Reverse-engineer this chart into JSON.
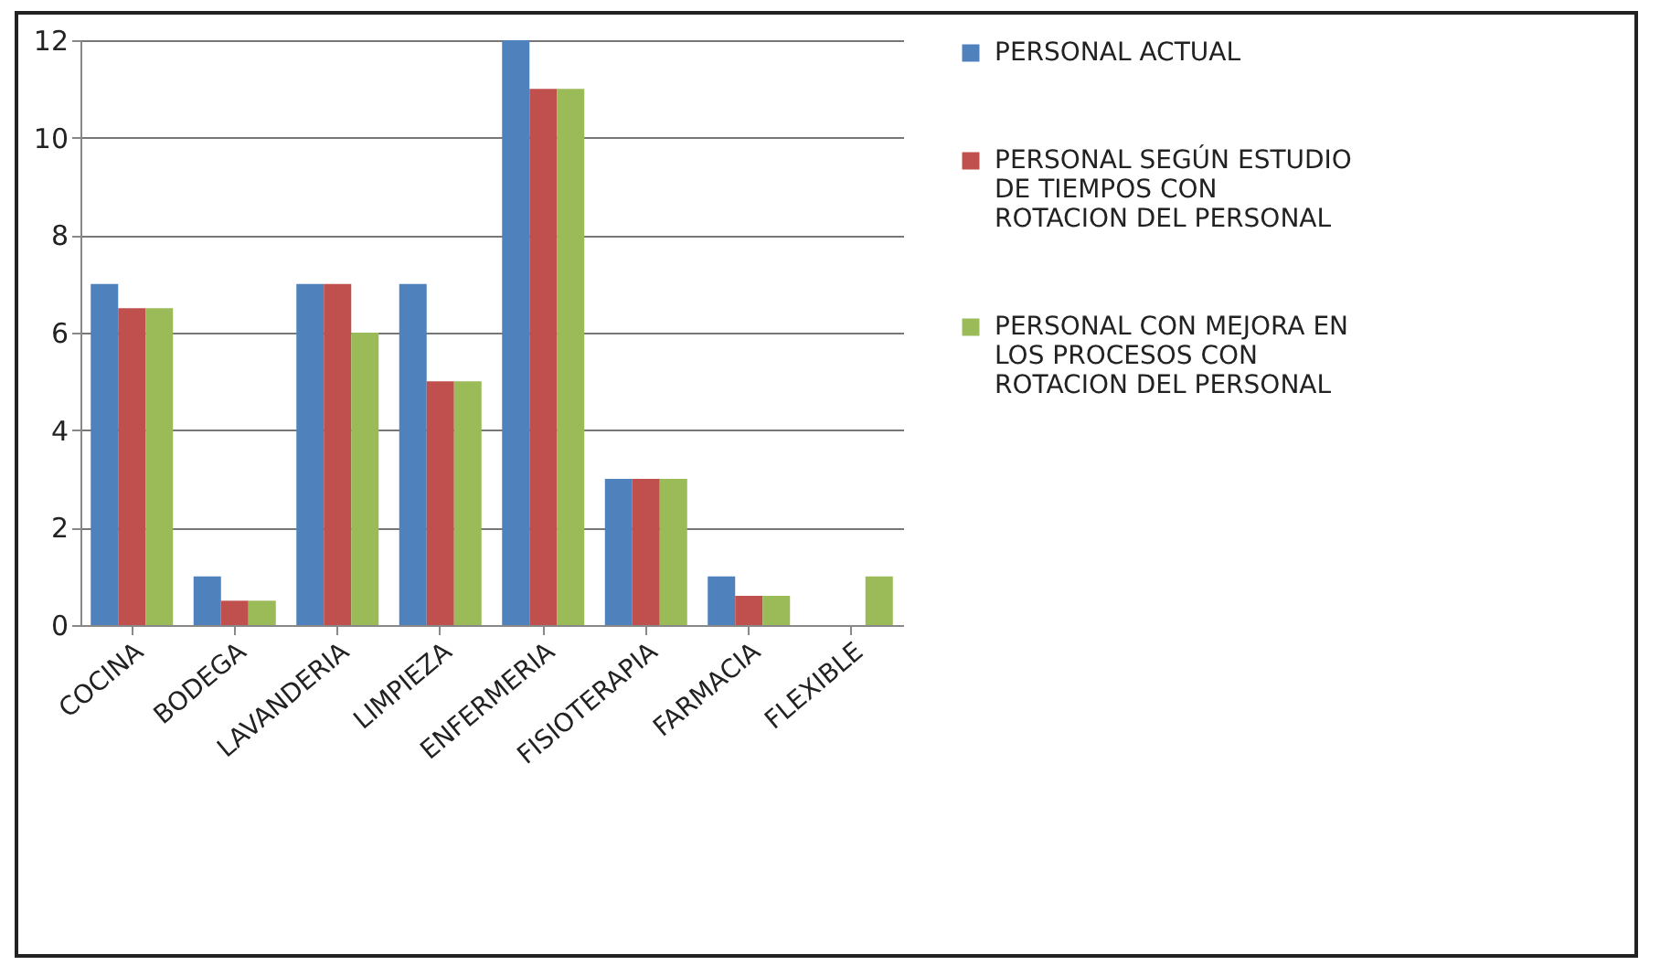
{
  "chart_data": {
    "type": "bar",
    "categories": [
      "COCINA",
      "BODEGA",
      "LAVANDERIA",
      "LIMPIEZA",
      "ENFERMERIA",
      "FISIOTERAPIA",
      "FARMACIA",
      "FLEXIBLE"
    ],
    "series": [
      {
        "name": "PERSONAL ACTUAL",
        "color": "#4f81bd",
        "values": [
          7,
          1,
          7,
          7,
          12,
          3,
          1,
          0
        ]
      },
      {
        "name": "PERSONAL SEGÚN ESTUDIO DE TIEMPOS CON  ROTACION DEL PERSONAL",
        "color": "#c0504d",
        "values": [
          6.5,
          0.5,
          7,
          5,
          11,
          3,
          0.6,
          0
        ]
      },
      {
        "name": "PERSONAL CON MEJORA EN LOS PROCESOS CON ROTACION DEL PERSONAL",
        "color": "#9bbb59",
        "values": [
          6.5,
          0.5,
          6,
          5,
          11,
          3,
          0.6,
          1
        ]
      }
    ],
    "ylim": [
      0,
      12
    ],
    "yticks": [
      0,
      2,
      4,
      6,
      8,
      10,
      12
    ],
    "grid": "y",
    "legend": "right"
  }
}
